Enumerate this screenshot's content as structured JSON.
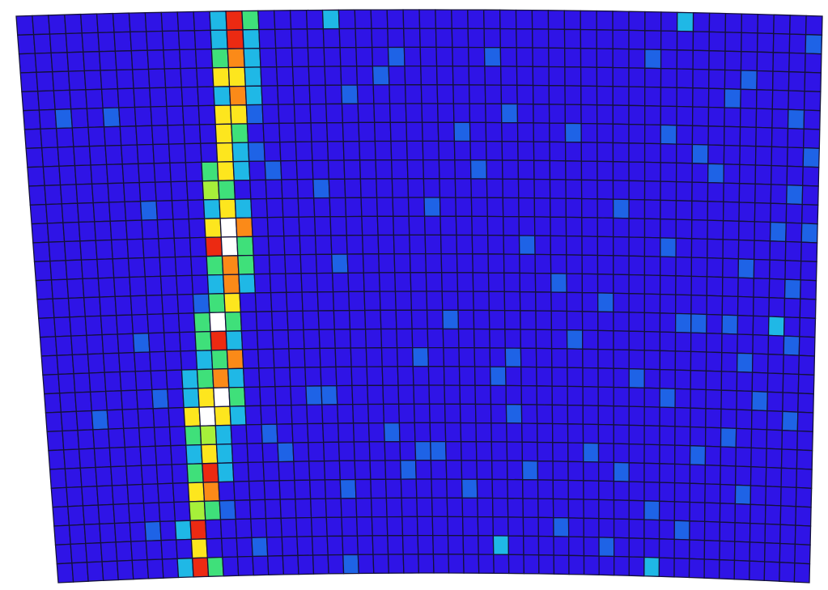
{
  "chart_data": {
    "type": "heatmap",
    "title": "",
    "xlabel": "",
    "ylabel": "",
    "grid": true,
    "legend": "none",
    "columns": 50,
    "rows": 30,
    "colormap": {
      "0": "#2f14e6",
      "1": "#1e63e6",
      "2": "#1fb8e6",
      "3": "#3fe07a",
      "4": "#a6f03a",
      "5": "#fde61e",
      "6": "#fb8a18",
      "7": "#ec2a12",
      "8": "#ffffff"
    },
    "cell_border_color": "#14123a",
    "background_level": 0,
    "hot_cells": [
      [
        0,
        12,
        2
      ],
      [
        0,
        13,
        7
      ],
      [
        0,
        14,
        3
      ],
      [
        1,
        12,
        2
      ],
      [
        1,
        13,
        7
      ],
      [
        1,
        14,
        2
      ],
      [
        2,
        12,
        3
      ],
      [
        2,
        13,
        6
      ],
      [
        2,
        14,
        2
      ],
      [
        3,
        12,
        5
      ],
      [
        3,
        13,
        5
      ],
      [
        3,
        14,
        2
      ],
      [
        4,
        12,
        2
      ],
      [
        4,
        13,
        6
      ],
      [
        4,
        14,
        2
      ],
      [
        5,
        12,
        5
      ],
      [
        5,
        13,
        5
      ],
      [
        5,
        14,
        1
      ],
      [
        6,
        12,
        5
      ],
      [
        6,
        13,
        3
      ],
      [
        7,
        12,
        5
      ],
      [
        7,
        13,
        2
      ],
      [
        8,
        11,
        3
      ],
      [
        8,
        12,
        5
      ],
      [
        8,
        13,
        2
      ],
      [
        9,
        11,
        4
      ],
      [
        9,
        12,
        3
      ],
      [
        10,
        11,
        2
      ],
      [
        10,
        12,
        5
      ],
      [
        10,
        13,
        2
      ],
      [
        11,
        11,
        5
      ],
      [
        11,
        12,
        8
      ],
      [
        11,
        13,
        6
      ],
      [
        12,
        11,
        7
      ],
      [
        12,
        12,
        8
      ],
      [
        12,
        13,
        3
      ],
      [
        13,
        11,
        3
      ],
      [
        13,
        12,
        6
      ],
      [
        13,
        13,
        3
      ],
      [
        14,
        11,
        2
      ],
      [
        14,
        12,
        6
      ],
      [
        14,
        13,
        2
      ],
      [
        15,
        10,
        2
      ],
      [
        15,
        11,
        3
      ],
      [
        15,
        12,
        5
      ],
      [
        16,
        10,
        3
      ],
      [
        16,
        11,
        8
      ],
      [
        16,
        12,
        3
      ],
      [
        17,
        10,
        3
      ],
      [
        17,
        11,
        7
      ],
      [
        17,
        12,
        2
      ],
      [
        18,
        10,
        2
      ],
      [
        18,
        11,
        3
      ],
      [
        18,
        12,
        6
      ],
      [
        19,
        9,
        2
      ],
      [
        19,
        10,
        3
      ],
      [
        19,
        11,
        6
      ],
      [
        19,
        12,
        2
      ],
      [
        20,
        9,
        2
      ],
      [
        20,
        10,
        5
      ],
      [
        20,
        11,
        8
      ],
      [
        20,
        12,
        3
      ],
      [
        21,
        9,
        5
      ],
      [
        21,
        10,
        8
      ],
      [
        21,
        11,
        5
      ],
      [
        21,
        12,
        2
      ],
      [
        22,
        9,
        3
      ],
      [
        22,
        10,
        4
      ],
      [
        22,
        11,
        2
      ],
      [
        23,
        9,
        2
      ],
      [
        23,
        10,
        5
      ],
      [
        23,
        11,
        2
      ],
      [
        24,
        9,
        3
      ],
      [
        24,
        10,
        7
      ],
      [
        24,
        11,
        2
      ],
      [
        25,
        9,
        5
      ],
      [
        25,
        10,
        6
      ],
      [
        26,
        9,
        4
      ],
      [
        26,
        10,
        3
      ],
      [
        27,
        8,
        2
      ],
      [
        27,
        9,
        7
      ],
      [
        28,
        9,
        5
      ],
      [
        29,
        8,
        2
      ],
      [
        29,
        9,
        7
      ],
      [
        29,
        10,
        3
      ],
      [
        0,
        19,
        2
      ],
      [
        0,
        41,
        2
      ],
      [
        1,
        49,
        1
      ],
      [
        2,
        23,
        1
      ],
      [
        2,
        29,
        1
      ],
      [
        2,
        39,
        1
      ],
      [
        3,
        22,
        1
      ],
      [
        3,
        45,
        1
      ],
      [
        4,
        20,
        1
      ],
      [
        4,
        44,
        1
      ],
      [
        5,
        2,
        1
      ],
      [
        5,
        5,
        1
      ],
      [
        5,
        30,
        1
      ],
      [
        5,
        48,
        1
      ],
      [
        6,
        27,
        1
      ],
      [
        6,
        34,
        1
      ],
      [
        6,
        40,
        1
      ],
      [
        7,
        14,
        1
      ],
      [
        7,
        42,
        1
      ],
      [
        7,
        49,
        1
      ],
      [
        8,
        15,
        1
      ],
      [
        8,
        28,
        1
      ],
      [
        8,
        43,
        1
      ],
      [
        9,
        18,
        1
      ],
      [
        9,
        48,
        1
      ],
      [
        10,
        7,
        1
      ],
      [
        10,
        25,
        1
      ],
      [
        10,
        37,
        1
      ],
      [
        11,
        47,
        1
      ],
      [
        11,
        49,
        1
      ],
      [
        12,
        31,
        1
      ],
      [
        12,
        40,
        1
      ],
      [
        13,
        19,
        1
      ],
      [
        13,
        45,
        1
      ],
      [
        14,
        33,
        1
      ],
      [
        14,
        48,
        1
      ],
      [
        15,
        10,
        1
      ],
      [
        15,
        36,
        1
      ],
      [
        16,
        26,
        1
      ],
      [
        16,
        41,
        1
      ],
      [
        16,
        42,
        1
      ],
      [
        16,
        44,
        1
      ],
      [
        16,
        47,
        2
      ],
      [
        17,
        6,
        1
      ],
      [
        17,
        34,
        1
      ],
      [
        17,
        48,
        1
      ],
      [
        18,
        24,
        1
      ],
      [
        18,
        30,
        1
      ],
      [
        18,
        45,
        1
      ],
      [
        19,
        29,
        1
      ],
      [
        19,
        38,
        1
      ],
      [
        20,
        7,
        1
      ],
      [
        20,
        17,
        1
      ],
      [
        20,
        18,
        1
      ],
      [
        20,
        40,
        1
      ],
      [
        20,
        46,
        1
      ],
      [
        21,
        3,
        1
      ],
      [
        21,
        30,
        1
      ],
      [
        21,
        48,
        1
      ],
      [
        22,
        14,
        1
      ],
      [
        22,
        22,
        1
      ],
      [
        22,
        44,
        1
      ],
      [
        23,
        15,
        1
      ],
      [
        23,
        24,
        1
      ],
      [
        23,
        25,
        1
      ],
      [
        23,
        35,
        1
      ],
      [
        23,
        42,
        1
      ],
      [
        24,
        23,
        1
      ],
      [
        24,
        31,
        1
      ],
      [
        24,
        37,
        1
      ],
      [
        25,
        19,
        1
      ],
      [
        25,
        27,
        1
      ],
      [
        25,
        45,
        1
      ],
      [
        26,
        11,
        1
      ],
      [
        26,
        39,
        1
      ],
      [
        27,
        6,
        1
      ],
      [
        27,
        33,
        1
      ],
      [
        27,
        41,
        1
      ],
      [
        28,
        13,
        1
      ],
      [
        28,
        29,
        2
      ],
      [
        28,
        36,
        1
      ],
      [
        29,
        19,
        1
      ],
      [
        29,
        39,
        2
      ]
    ]
  }
}
